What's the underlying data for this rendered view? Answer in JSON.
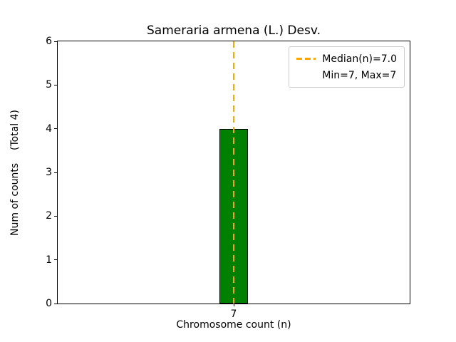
{
  "chart_data": {
    "type": "bar",
    "title": "Sameraria armena (L.) Desv.",
    "xlabel": "Chromosome count (n)",
    "ylabel": "Num of counts    (Total 4)",
    "categories": [
      "7"
    ],
    "values": [
      4
    ],
    "ylim": [
      0,
      6
    ],
    "yticks": [
      0,
      1,
      2,
      3,
      4,
      5,
      6
    ],
    "grid": false,
    "bar_color": "#008000",
    "bar_edge_color": "#000000",
    "median_line": {
      "x": 7,
      "color": "#FFA500",
      "style": "dashed"
    },
    "legend": {
      "position": "upper right",
      "entries": [
        {
          "label": "Median(n)=7.0",
          "line_color": "#FFA500",
          "line_style": "dashed"
        },
        {
          "label": "Min=7, Max=7",
          "line_color": null,
          "line_style": null
        }
      ]
    }
  }
}
